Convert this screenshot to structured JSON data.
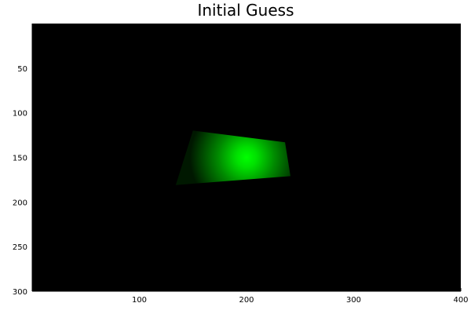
{
  "chart_data": {
    "type": "heatmap",
    "title": "Initial Guess",
    "xlabel": "",
    "ylabel": "",
    "xlim": [
      0,
      400
    ],
    "ylim": [
      300,
      0
    ],
    "y_axis_inverted": true,
    "grid": false,
    "background_color": "#000000",
    "colors": {
      "peak": "#00ff00",
      "mid": "#008a00",
      "dark": "#001800"
    },
    "x_ticks": [
      100,
      200,
      300,
      400
    ],
    "y_ticks": [
      50,
      100,
      150,
      200,
      250,
      300
    ],
    "x_tick_labels": [
      "100",
      "200",
      "300",
      "400"
    ],
    "y_tick_labels": [
      "50",
      "100",
      "150",
      "200",
      "250",
      "300"
    ],
    "region": {
      "corners": [
        [
          150,
          120
        ],
        [
          236,
          133
        ],
        [
          241,
          171
        ],
        [
          134,
          181
        ]
      ],
      "peak_center": [
        200,
        150
      ],
      "peak_intensity": 1.0
    }
  }
}
